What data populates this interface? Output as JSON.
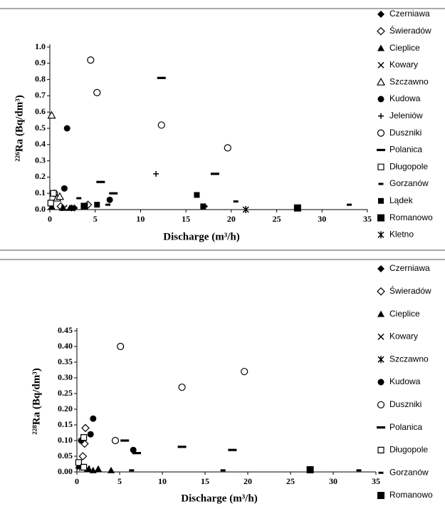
{
  "chart_data": [
    {
      "type": "scatter",
      "xlabel": "Discharge (m³/h)",
      "ylabel": "²²⁶Ra (Bq/dm³)",
      "xlim": [
        0,
        35
      ],
      "xticks": [
        0,
        5,
        10,
        15,
        20,
        25,
        30,
        35
      ],
      "ylim": [
        0,
        1
      ],
      "yticks": [
        {
          "value": 0,
          "label": "0.0"
        },
        0.1,
        0.2,
        0.3,
        0.4,
        0.5,
        0.6,
        0.7,
        0.8,
        0.9,
        {
          "value": 1,
          "label": "1.0"
        }
      ],
      "series": [
        {
          "name": "Czerniawa",
          "marker": "filled-diamond",
          "color": "#000",
          "x": [
            2.4,
            2.7
          ],
          "values": [
            0.01,
            0.01
          ]
        },
        {
          "name": "Świeradów",
          "marker": "open-diamond",
          "color": "#000",
          "x": [
            4.2,
            1.2
          ],
          "values": [
            0.03,
            0.02
          ]
        },
        {
          "name": "Cieplice",
          "marker": "filled-triangle",
          "color": "#000",
          "x": [
            0.2,
            1.4,
            2.2
          ],
          "values": [
            0.02,
            0.01,
            0.01
          ]
        },
        {
          "name": "Kowary",
          "marker": "x",
          "color": "#000",
          "x": [
            1.6
          ],
          "values": [
            0.01
          ]
        },
        {
          "name": "Szczawno",
          "marker": "open-triangle",
          "color": "#000",
          "x": [
            0.2,
            0.8,
            1.1
          ],
          "values": [
            0.58,
            0.07,
            0.08
          ]
        },
        {
          "name": "Kudowa",
          "marker": "filled-circle",
          "color": "#000",
          "x": [
            0.5,
            1.6,
            1.9,
            6.6
          ],
          "values": [
            0.1,
            0.13,
            0.5,
            0.06
          ]
        },
        {
          "name": "Jeleniów",
          "marker": "plus",
          "color": "#000",
          "x": [
            11.7
          ],
          "values": [
            0.22
          ]
        },
        {
          "name": "Duszniki",
          "marker": "open-circle",
          "color": "#000",
          "x": [
            4.5,
            5.2,
            12.3,
            19.6,
            0.5
          ],
          "values": [
            0.92,
            0.72,
            0.52,
            0.38,
            0.1
          ]
        },
        {
          "name": "Polanica",
          "marker": "dash",
          "color": "#000",
          "x": [
            12.3,
            5.6,
            18.2,
            7.0
          ],
          "values": [
            0.81,
            0.17,
            0.22,
            0.1
          ]
        },
        {
          "name": "Długopole",
          "marker": "open-square",
          "color": "#000",
          "x": [
            0.4,
            0.1
          ],
          "values": [
            0.1,
            0.04
          ]
        },
        {
          "name": "Gorzanów",
          "marker": "short-dash",
          "color": "#000",
          "x": [
            3.2,
            6.4,
            17.1,
            20.5,
            33.0
          ],
          "values": [
            0.07,
            0.03,
            0.02,
            0.05,
            0.03
          ]
        },
        {
          "name": "Lądek",
          "marker": "filled-square",
          "color": "#000",
          "x": [
            16.2,
            16.9,
            5.2
          ],
          "values": [
            0.09,
            0.02,
            0.03
          ]
        },
        {
          "name": "Romanowo",
          "marker": "big-square",
          "color": "#000",
          "x": [
            27.3,
            3.8
          ],
          "values": [
            0.01,
            0.02
          ]
        },
        {
          "name": "Kletno",
          "marker": "asterisk",
          "color": "#000",
          "x": [
            21.6
          ],
          "values": [
            0.0
          ]
        }
      ]
    },
    {
      "type": "scatter",
      "xlabel": "Discharge (m³/h)",
      "ylabel": "²²⁸Ra (Bq/dm³)",
      "xlim": [
        0,
        35
      ],
      "xticks": [
        0,
        5,
        10,
        15,
        20,
        25,
        30,
        35
      ],
      "ylim": [
        0,
        0.45
      ],
      "yticks": [
        {
          "value": 0,
          "label": "0.00"
        },
        {
          "value": 0.05,
          "label": "0.05"
        },
        {
          "value": 0.1,
          "label": "0.10"
        },
        {
          "value": 0.15,
          "label": "0.15"
        },
        {
          "value": 0.2,
          "label": "0.20"
        },
        {
          "value": 0.25,
          "label": "0.25"
        },
        {
          "value": 0.3,
          "label": "0.30"
        },
        {
          "value": 0.35,
          "label": "0.35"
        },
        {
          "value": 0.4,
          "label": "0.40"
        },
        {
          "value": 0.45,
          "label": "0.45"
        }
      ],
      "series": [
        {
          "name": "Czerniawa",
          "marker": "filled-diamond",
          "color": "#000",
          "x": [
            0.6
          ],
          "values": [
            0.1
          ]
        },
        {
          "name": "Świeradów",
          "marker": "open-diamond",
          "color": "#000",
          "x": [
            1.0,
            0.9,
            0.7
          ],
          "values": [
            0.14,
            0.09,
            0.05
          ]
        },
        {
          "name": "Cieplice",
          "marker": "filled-triangle",
          "color": "#000",
          "x": [
            0.2,
            1.4,
            2.5,
            4.0,
            1.9
          ],
          "values": [
            0.02,
            0.01,
            0.01,
            0.005,
            0.005
          ]
        },
        {
          "name": "Kowary",
          "marker": "x",
          "color": "#000",
          "x": [
            1.2
          ],
          "values": [
            0.01
          ]
        },
        {
          "name": "Szczawno",
          "marker": "asterisk",
          "color": "#000",
          "x": [
            0.3
          ],
          "values": [
            0.015
          ]
        },
        {
          "name": "Kudowa",
          "marker": "filled-circle",
          "color": "#000",
          "x": [
            1.9,
            1.6,
            0.5,
            6.6
          ],
          "values": [
            0.17,
            0.12,
            0.1,
            0.07
          ]
        },
        {
          "name": "Duszniki",
          "marker": "open-circle",
          "color": "#000",
          "x": [
            5.1,
            12.3,
            19.6,
            4.5
          ],
          "values": [
            0.4,
            0.27,
            0.32,
            0.1
          ]
        },
        {
          "name": "Polanica",
          "marker": "dash",
          "color": "#000",
          "x": [
            5.6,
            12.3,
            18.2,
            7.0
          ],
          "values": [
            0.1,
            0.08,
            0.07,
            0.06
          ]
        },
        {
          "name": "Długopole",
          "marker": "open-square",
          "color": "#000",
          "x": [
            0.8,
            0.2,
            0.8
          ],
          "values": [
            0.11,
            0.03,
            0.015
          ]
        },
        {
          "name": "Gorzanów",
          "marker": "short-dash",
          "color": "#000",
          "x": [
            6.4,
            17.1,
            33.0
          ],
          "values": [
            0.005,
            0.005,
            0.005
          ]
        },
        {
          "name": "Romanowo",
          "marker": "big-square",
          "color": "#000",
          "x": [
            27.3
          ],
          "values": [
            0.007
          ]
        }
      ]
    }
  ]
}
